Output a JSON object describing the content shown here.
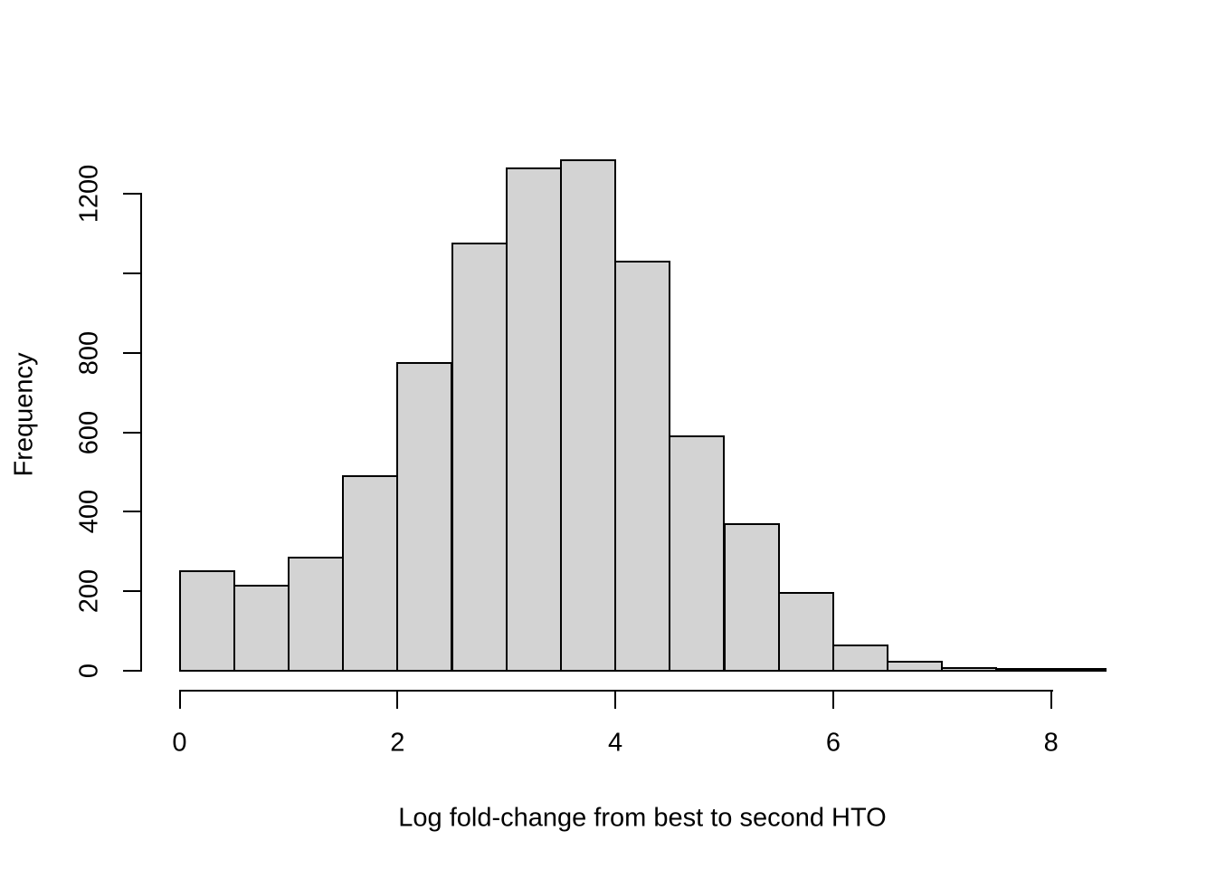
{
  "figure": {
    "background_color": "#ffffff",
    "bar_fill_color": "#d3d3d3",
    "bar_border_color": "#000000",
    "axis_color": "#000000",
    "text_color": "#000000"
  },
  "chart_data": {
    "type": "bar",
    "subtype": "histogram",
    "title": "",
    "xlabel": "Log fold-change from best to second HTO",
    "ylabel": "Frequency",
    "xlim": [
      0,
      8.5
    ],
    "ylim": [
      0,
      1285
    ],
    "grid": false,
    "legend": "none",
    "bin_width": 0.5,
    "bins": [
      {
        "x0": 0.0,
        "x1": 0.5,
        "count": 250
      },
      {
        "x0": 0.5,
        "x1": 1.0,
        "count": 215
      },
      {
        "x0": 1.0,
        "x1": 1.5,
        "count": 285
      },
      {
        "x0": 1.5,
        "x1": 2.0,
        "count": 490
      },
      {
        "x0": 2.0,
        "x1": 2.5,
        "count": 775
      },
      {
        "x0": 2.5,
        "x1": 3.0,
        "count": 1075
      },
      {
        "x0": 3.0,
        "x1": 3.5,
        "count": 1265
      },
      {
        "x0": 3.5,
        "x1": 4.0,
        "count": 1285
      },
      {
        "x0": 4.0,
        "x1": 4.5,
        "count": 1030
      },
      {
        "x0": 4.5,
        "x1": 5.0,
        "count": 590
      },
      {
        "x0": 5.0,
        "x1": 5.5,
        "count": 370
      },
      {
        "x0": 5.5,
        "x1": 6.0,
        "count": 195
      },
      {
        "x0": 6.0,
        "x1": 6.5,
        "count": 65
      },
      {
        "x0": 6.5,
        "x1": 7.0,
        "count": 22
      },
      {
        "x0": 7.0,
        "x1": 7.5,
        "count": 6
      },
      {
        "x0": 7.5,
        "x1": 8.0,
        "count": 3
      },
      {
        "x0": 8.0,
        "x1": 8.5,
        "count": 2
      }
    ],
    "x_ticks": [
      {
        "value": 0,
        "label": "0"
      },
      {
        "value": 2,
        "label": "2"
      },
      {
        "value": 4,
        "label": "4"
      },
      {
        "value": 6,
        "label": "6"
      },
      {
        "value": 8,
        "label": "8"
      }
    ],
    "y_ticks": [
      {
        "value": 0,
        "label": "0"
      },
      {
        "value": 200,
        "label": "200"
      },
      {
        "value": 400,
        "label": "400"
      },
      {
        "value": 600,
        "label": "600"
      },
      {
        "value": 800,
        "label": "800"
      },
      {
        "value": 1000,
        "label": ""
      },
      {
        "value": 1200,
        "label": "1200"
      }
    ]
  }
}
